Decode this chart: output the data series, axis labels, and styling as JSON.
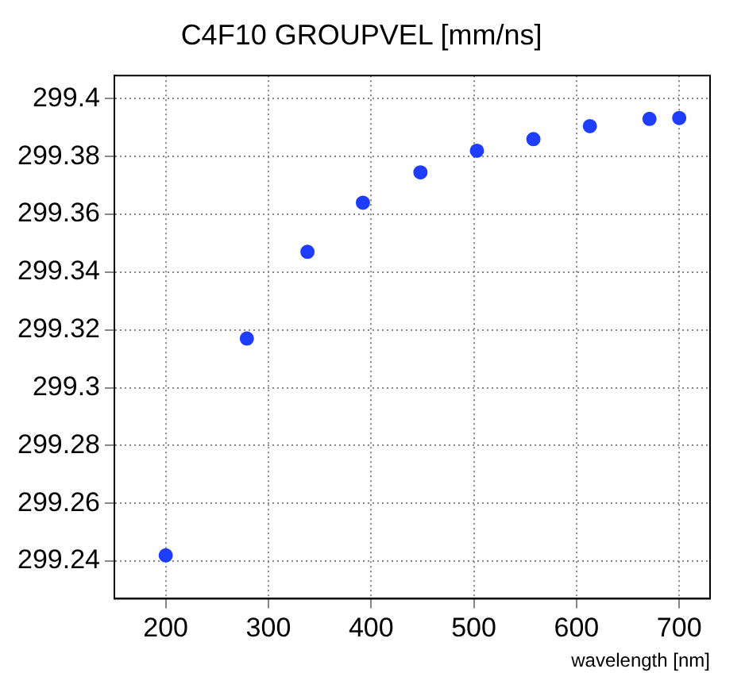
{
  "chart_data": {
    "type": "scatter",
    "title": "C4F10 GROUPVEL [mm/ns]",
    "xlabel": "wavelength [nm]",
    "x": [
      200,
      279,
      338,
      392,
      448,
      503,
      558,
      613,
      671,
      700
    ],
    "series": [
      {
        "color": "#1f3dff",
        "values": [
          299.242,
          299.317,
          299.347,
          299.364,
          299.3745,
          299.382,
          299.386,
          299.3905,
          299.393,
          299.3933
        ]
      }
    ],
    "xlim": [
      150,
      730
    ],
    "xticks": [
      200,
      300,
      400,
      500,
      600,
      700
    ],
    "ylim": [
      299.227,
      299.408
    ],
    "yticks": [
      299.24,
      299.26,
      299.28,
      299.3,
      299.32,
      299.34,
      299.36,
      299.38,
      299.4
    ],
    "grid": true,
    "marker": "circle",
    "legend": false
  }
}
